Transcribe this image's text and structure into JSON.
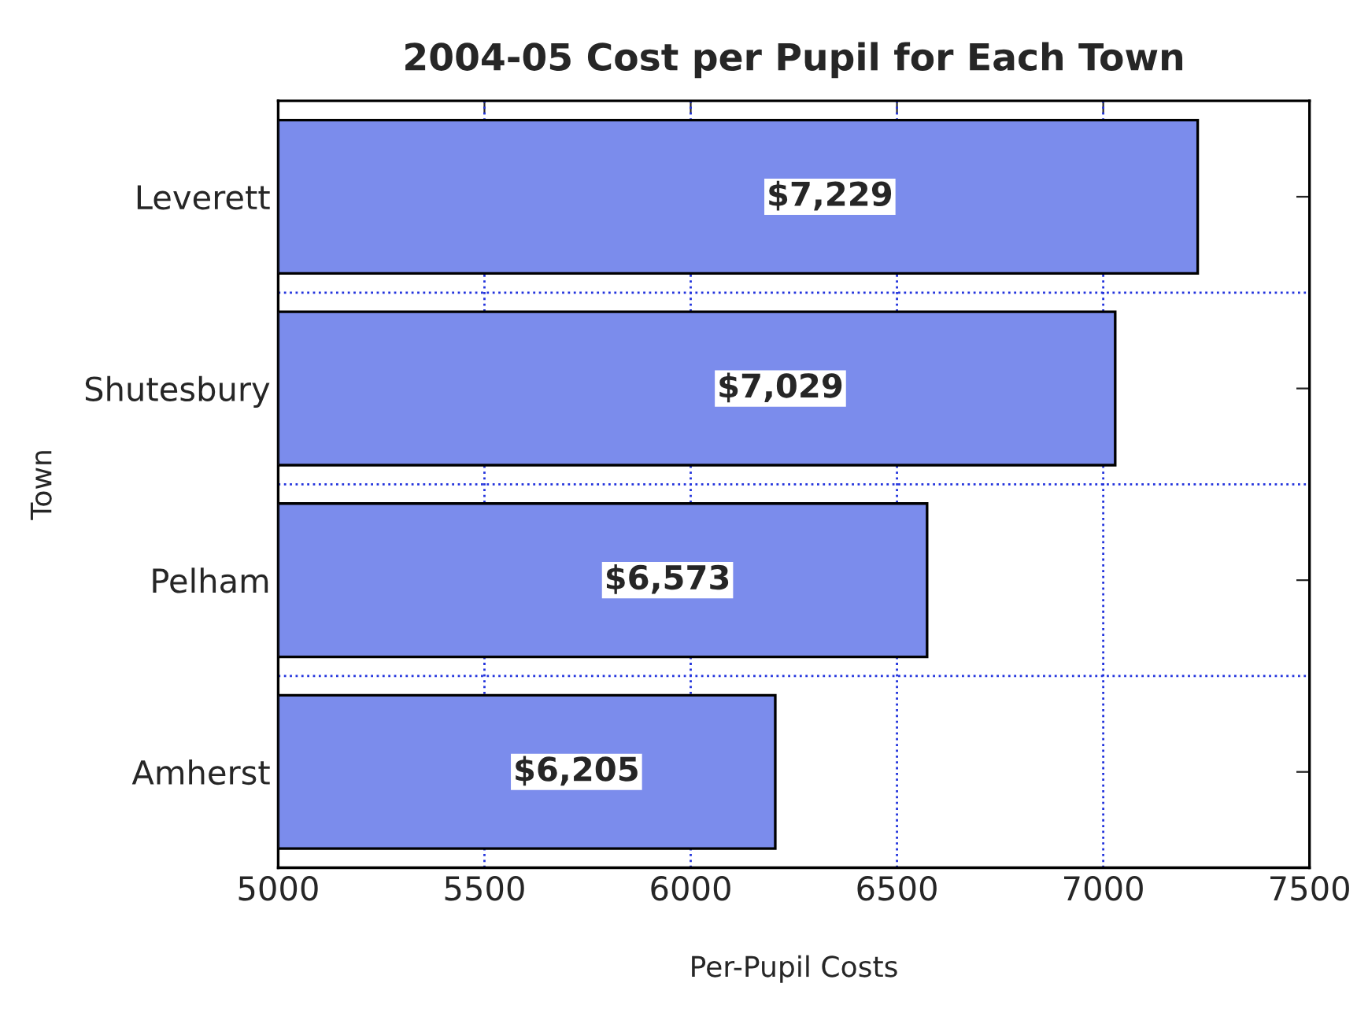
{
  "chart_data": {
    "type": "bar",
    "orientation": "horizontal",
    "title": "2004-05 Cost per Pupil for Each Town",
    "xlabel": "Per-Pupil Costs",
    "ylabel": "Town",
    "categories": [
      "Leverett",
      "Shutesbury",
      "Pelham",
      "Amherst"
    ],
    "values": [
      7229,
      7029,
      6573,
      6205
    ],
    "value_labels": [
      "$7,229",
      "$7,029",
      "$6,573",
      "$6,205"
    ],
    "color": "#7b8cec",
    "xlim": [
      5000,
      7500
    ],
    "xticks": [
      5000,
      5500,
      6000,
      6500,
      7000,
      7500
    ],
    "grid": true,
    "legend": false
  }
}
